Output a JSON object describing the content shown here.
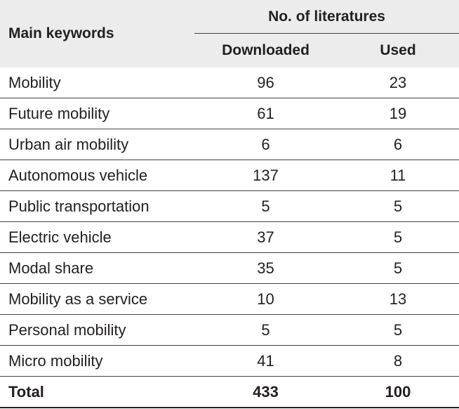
{
  "table": {
    "header": {
      "main_keywords": "Main keywords",
      "group": "No. of literatures",
      "downloaded": "Downloaded",
      "used": "Used"
    },
    "rows": [
      {
        "keyword": "Mobility",
        "downloaded": "96",
        "used": "23"
      },
      {
        "keyword": "Future mobility",
        "downloaded": "61",
        "used": "19"
      },
      {
        "keyword": "Urban air mobility",
        "downloaded": "6",
        "used": "6"
      },
      {
        "keyword": "Autonomous vehicle",
        "downloaded": "137",
        "used": "11"
      },
      {
        "keyword": "Public transportation",
        "downloaded": "5",
        "used": "5"
      },
      {
        "keyword": "Electric vehicle",
        "downloaded": "37",
        "used": "5"
      },
      {
        "keyword": "Modal share",
        "downloaded": "35",
        "used": "5"
      },
      {
        "keyword": "Mobility as a service",
        "downloaded": "10",
        "used": "13"
      },
      {
        "keyword": "Personal mobility",
        "downloaded": "5",
        "used": "5"
      },
      {
        "keyword": "Micro mobility",
        "downloaded": "41",
        "used": "8"
      }
    ],
    "total": {
      "label": "Total",
      "downloaded": "433",
      "used": "100"
    }
  }
}
